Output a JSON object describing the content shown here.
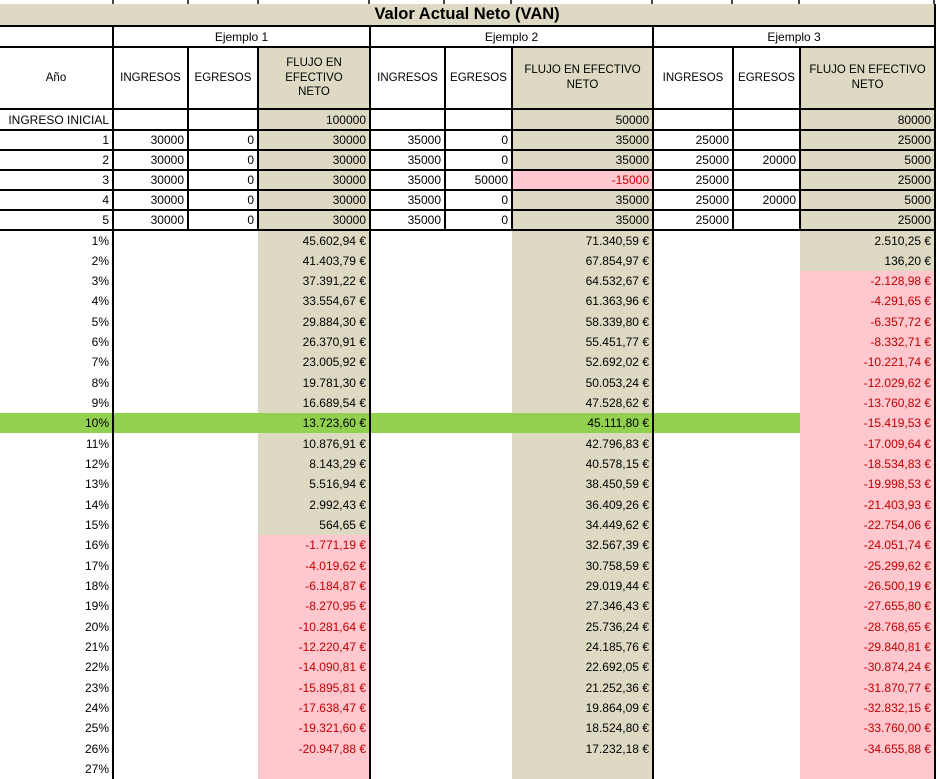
{
  "title": "Valor Actual Neto (VAN)",
  "examples": [
    "Ejemplo 1",
    "Ejemplo 2",
    "Ejemplo 3"
  ],
  "headers": {
    "year": "Año",
    "ingresos": "INGRESOS",
    "egresos": "EGRESOS",
    "flujo": "FLUJO EN EFECTIVO NETO"
  },
  "colors": {
    "tan": "#DDD9C3",
    "pink": "#FFC7CE",
    "green": "#92D050",
    "negtext": "#C00000"
  },
  "cashflow_rows": [
    {
      "label": "INGRESO INICIAL",
      "e1": [
        "",
        "",
        "100000"
      ],
      "e2": [
        "",
        "",
        "50000"
      ],
      "e3": [
        "",
        "",
        "80000"
      ]
    },
    {
      "label": "1",
      "e1": [
        "30000",
        "0",
        "30000"
      ],
      "e2": [
        "35000",
        "0",
        "35000"
      ],
      "e3": [
        "25000",
        "",
        "25000"
      ]
    },
    {
      "label": "2",
      "e1": [
        "30000",
        "0",
        "30000"
      ],
      "e2": [
        "35000",
        "0",
        "35000"
      ],
      "e3": [
        "25000",
        "20000",
        "5000"
      ]
    },
    {
      "label": "3",
      "e1": [
        "30000",
        "0",
        "30000"
      ],
      "e2": [
        "35000",
        "50000",
        "-15000"
      ],
      "e3": [
        "25000",
        "",
        "25000"
      ]
    },
    {
      "label": "4",
      "e1": [
        "30000",
        "0",
        "30000"
      ],
      "e2": [
        "35000",
        "0",
        "35000"
      ],
      "e3": [
        "25000",
        "20000",
        "5000"
      ]
    },
    {
      "label": "5",
      "e1": [
        "30000",
        "0",
        "30000"
      ],
      "e2": [
        "35000",
        "0",
        "35000"
      ],
      "e3": [
        "25000",
        "",
        "25000"
      ]
    }
  ],
  "highlighted_rate": "10%",
  "van_rows": [
    {
      "rate": "1%",
      "e1": "45.602,94 €",
      "e2": "71.340,59 €",
      "e3": "2.510,25 €"
    },
    {
      "rate": "2%",
      "e1": "41.403,79 €",
      "e2": "67.854,97 €",
      "e3": "136,20 €"
    },
    {
      "rate": "3%",
      "e1": "37.391,22 €",
      "e2": "64.532,67 €",
      "e3": "-2.128,98 €"
    },
    {
      "rate": "4%",
      "e1": "33.554,67 €",
      "e2": "61.363,96 €",
      "e3": "-4.291,65 €"
    },
    {
      "rate": "5%",
      "e1": "29.884,30 €",
      "e2": "58.339,80 €",
      "e3": "-6.357,72 €"
    },
    {
      "rate": "6%",
      "e1": "26.370,91 €",
      "e2": "55.451,77 €",
      "e3": "-8.332,71 €"
    },
    {
      "rate": "7%",
      "e1": "23.005,92 €",
      "e2": "52.692,02 €",
      "e3": "-10.221,74 €"
    },
    {
      "rate": "8%",
      "e1": "19.781,30 €",
      "e2": "50.053,24 €",
      "e3": "-12.029,62 €"
    },
    {
      "rate": "9%",
      "e1": "16.689,54 €",
      "e2": "47.528,62 €",
      "e3": "-13.760,82 €"
    },
    {
      "rate": "10%",
      "e1": "13.723,60 €",
      "e2": "45.111,80 €",
      "e3": "-15.419,53 €"
    },
    {
      "rate": "11%",
      "e1": "10.876,91 €",
      "e2": "42.796,83 €",
      "e3": "-17.009,64 €"
    },
    {
      "rate": "12%",
      "e1": "8.143,29 €",
      "e2": "40.578,15 €",
      "e3": "-18.534,83 €"
    },
    {
      "rate": "13%",
      "e1": "5.516,94 €",
      "e2": "38.450,59 €",
      "e3": "-19.998,53 €"
    },
    {
      "rate": "14%",
      "e1": "2.992,43 €",
      "e2": "36.409,26 €",
      "e3": "-21.403,93 €"
    },
    {
      "rate": "15%",
      "e1": "564,65 €",
      "e2": "34.449,62 €",
      "e3": "-22.754,06 €"
    },
    {
      "rate": "16%",
      "e1": "-1.771,19 €",
      "e2": "32.567,39 €",
      "e3": "-24.051,74 €"
    },
    {
      "rate": "17%",
      "e1": "-4.019,62 €",
      "e2": "30.758,59 €",
      "e3": "-25.299,62 €"
    },
    {
      "rate": "18%",
      "e1": "-6.184,87 €",
      "e2": "29.019,44 €",
      "e3": "-26.500,19 €"
    },
    {
      "rate": "19%",
      "e1": "-8.270,95 €",
      "e2": "27.346,43 €",
      "e3": "-27.655,80 €"
    },
    {
      "rate": "20%",
      "e1": "-10.281,64 €",
      "e2": "25.736,24 €",
      "e3": "-28.768,65 €"
    },
    {
      "rate": "21%",
      "e1": "-12.220,47 €",
      "e2": "24.185,76 €",
      "e3": "-29.840,81 €"
    },
    {
      "rate": "22%",
      "e1": "-14.090,81 €",
      "e2": "22.692,05 €",
      "e3": "-30.874,24 €"
    },
    {
      "rate": "23%",
      "e1": "-15.895,81 €",
      "e2": "21.252,36 €",
      "e3": "-31.870,77 €"
    },
    {
      "rate": "24%",
      "e1": "-17.638,47 €",
      "e2": "19.864,09 €",
      "e3": "-32.832,15 €"
    },
    {
      "rate": "25%",
      "e1": "-19.321,60 €",
      "e2": "18.524,80 €",
      "e3": "-33.760,00 €"
    },
    {
      "rate": "26%",
      "e1": "-20.947,88 €",
      "e2": "17.232,18 €",
      "e3": "-34.655,88 €"
    }
  ],
  "partial_row": {
    "rate": "27%",
    "e1": "",
    "e2": "",
    "e3": ""
  }
}
